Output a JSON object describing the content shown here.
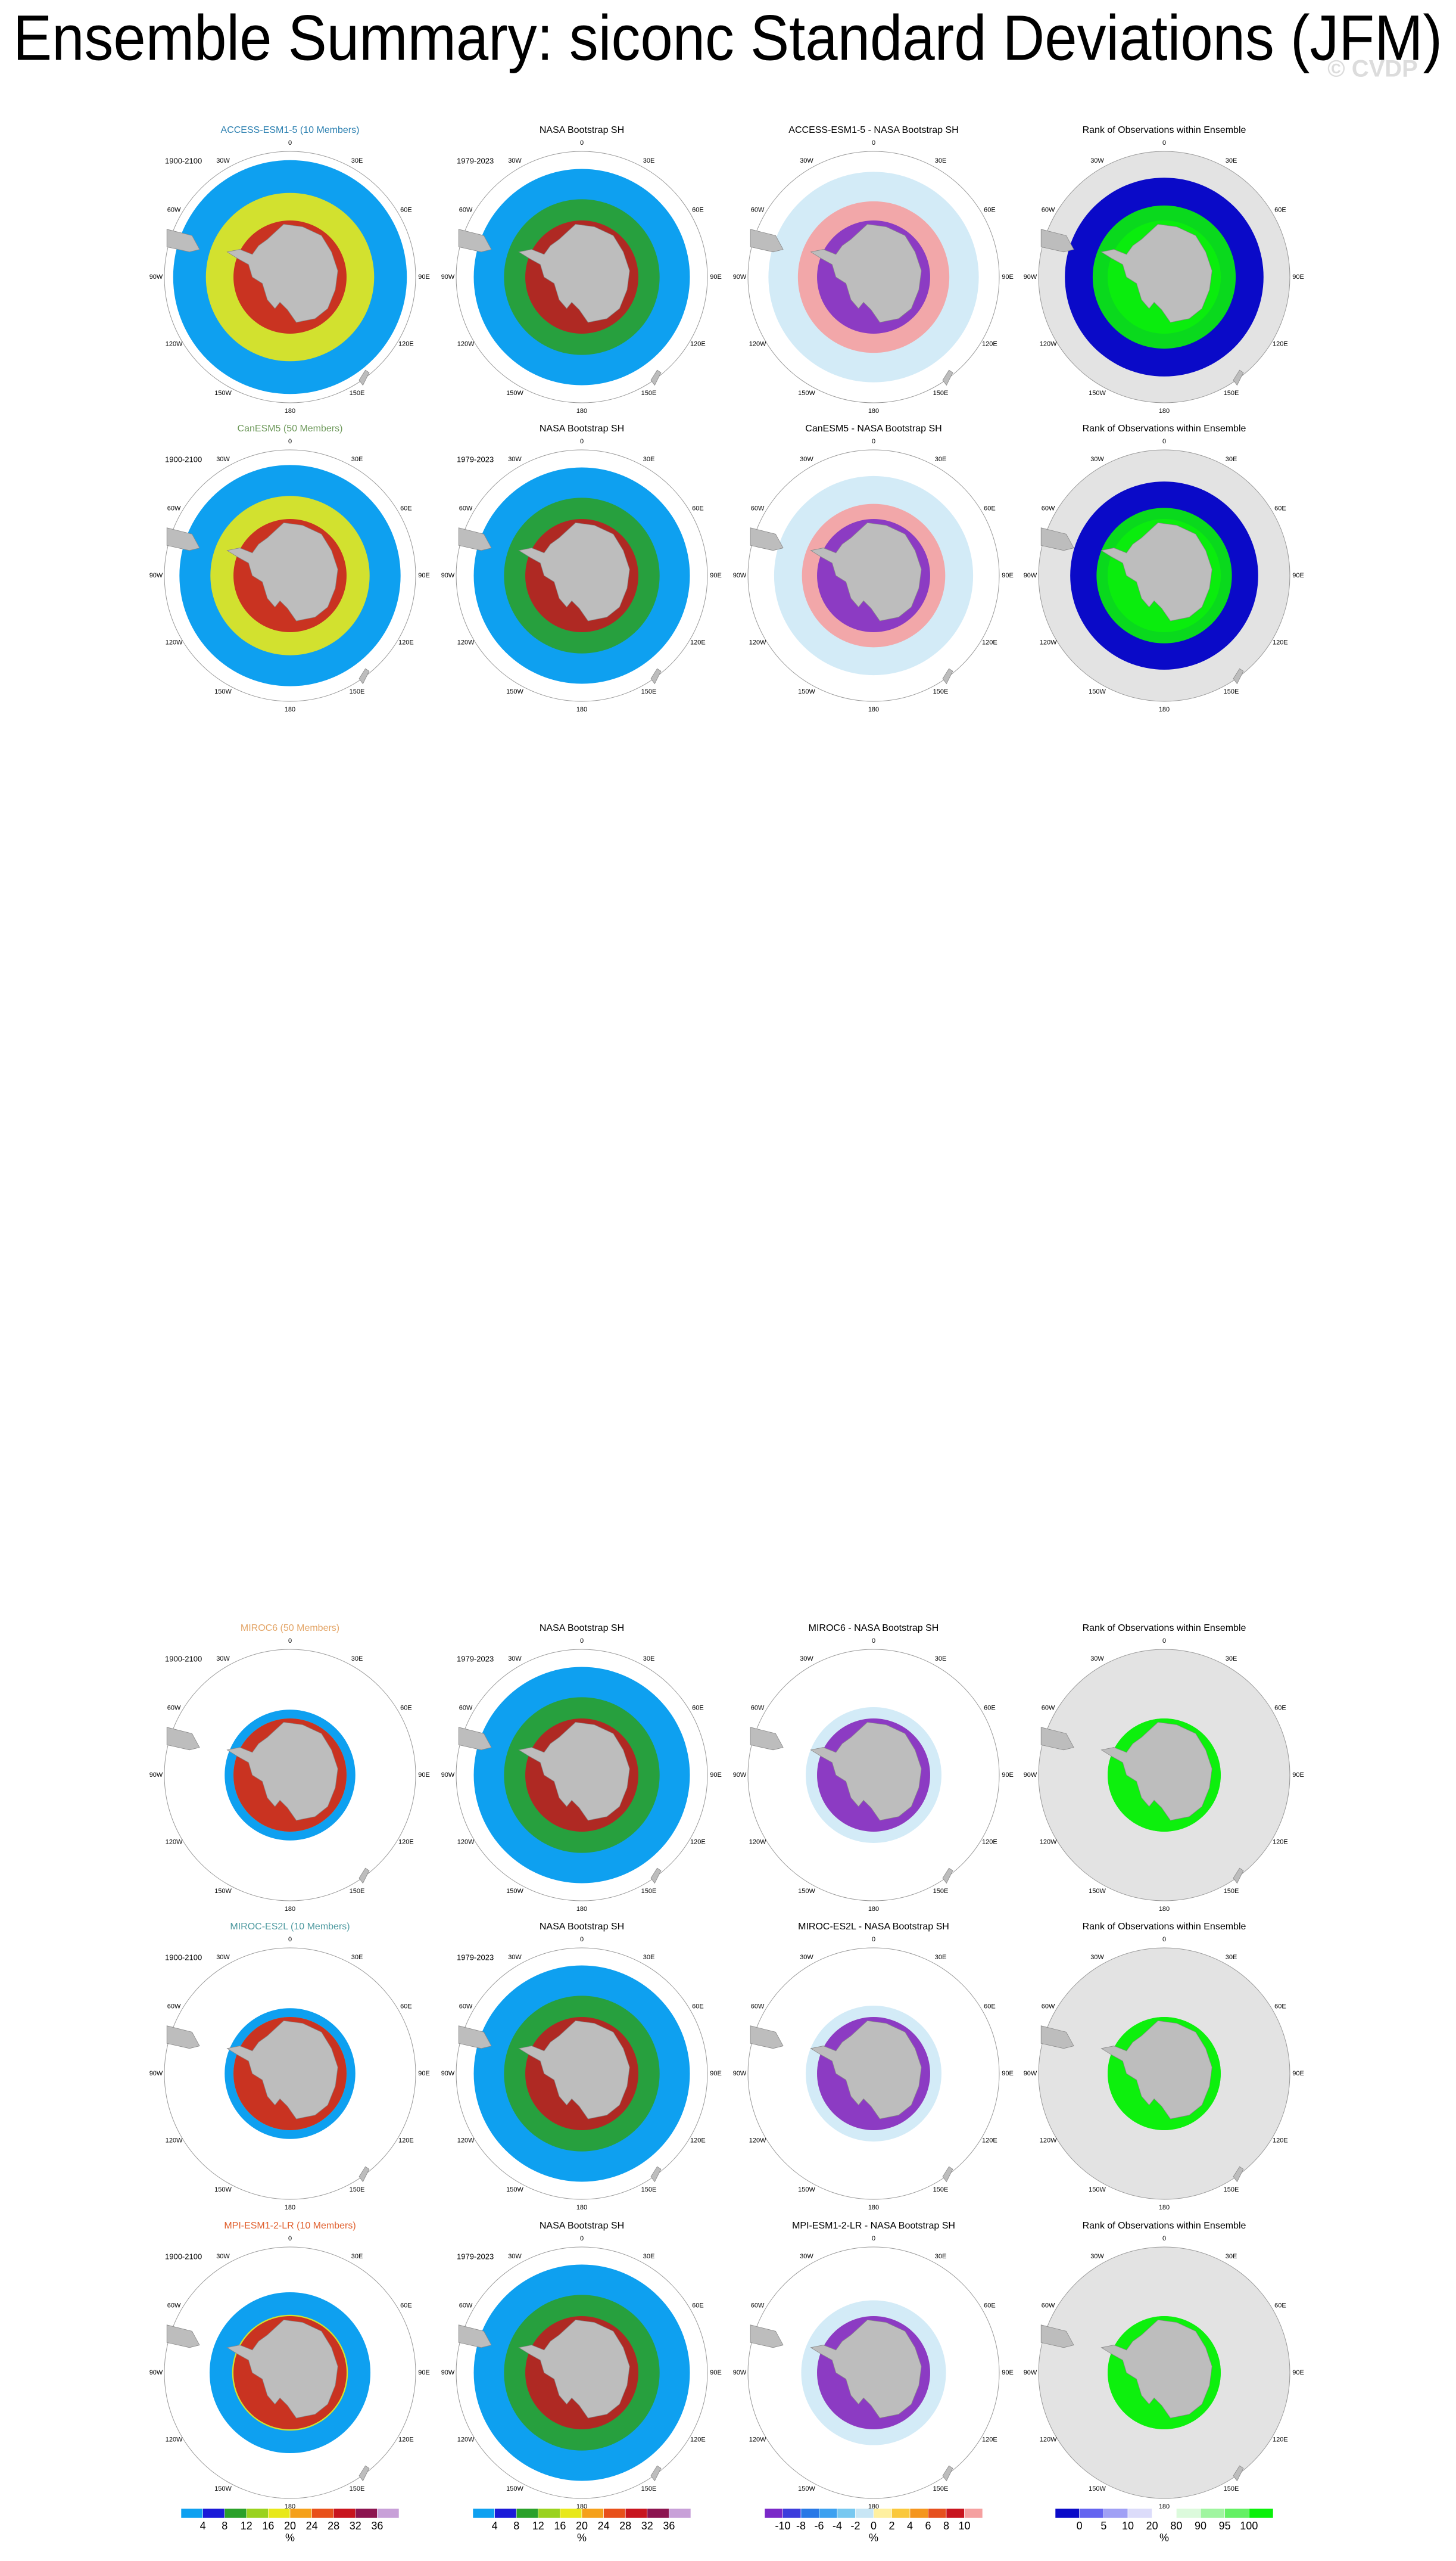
{
  "title": "Ensemble Summary: siconc Standard Deviations (JFM)",
  "watermark": "© CVDP",
  "longitude_labels": [
    "0",
    "30E",
    "60E",
    "90E",
    "120E",
    "150E",
    "180",
    "150W",
    "120W",
    "90W",
    "60W",
    "30W"
  ],
  "rows": [
    {
      "model": "ACCESS-ESM1-5 (10 Members)",
      "model_color": "#2a7fb0",
      "model_period": "1900-2100",
      "obs": "NASA Bootstrap SH",
      "obs_period": "1979-2023",
      "difference": "ACCESS-ESM1-5 - NASA Bootstrap SH",
      "rank": "Rank of Observations within Ensemble"
    },
    {
      "model": "CanESM5 (50 Members)",
      "model_color": "#6f9a5c",
      "model_period": "1900-2100",
      "obs": "NASA Bootstrap SH",
      "obs_period": "1979-2023",
      "difference": "CanESM5 - NASA Bootstrap SH",
      "rank": "Rank of Observations within Ensemble"
    },
    {
      "model": "MIROC6 (50 Members)",
      "model_color": "#e3a567",
      "model_period": "1900-2100",
      "obs": "NASA Bootstrap SH",
      "obs_period": "1979-2023",
      "difference": "MIROC6 - NASA Bootstrap SH",
      "rank": "Rank of Observations within Ensemble"
    },
    {
      "model": "MIROC-ES2L (10 Members)",
      "model_color": "#4f9aa0",
      "model_period": "1900-2100",
      "obs": "NASA Bootstrap SH",
      "obs_period": "1979-2023",
      "difference": "MIROC-ES2L - NASA Bootstrap SH",
      "rank": "Rank of Observations within Ensemble"
    },
    {
      "model": "MPI-ESM1-2-LR (10 Members)",
      "model_color": "#e0602e",
      "model_period": "1900-2100",
      "obs": "NASA Bootstrap SH",
      "obs_period": "1979-2023",
      "difference": "MPI-ESM1-2-LR - NASA Bootstrap SH",
      "rank": "Rank of Observations within Ensemble"
    }
  ],
  "colorbars": [
    {
      "ticks": [
        "4",
        "8",
        "12",
        "16",
        "20",
        "24",
        "28",
        "32",
        "36"
      ],
      "unit": "%",
      "colors": [
        "#0ea0f0",
        "#1a1ad8",
        "#2aa02a",
        "#9ad21e",
        "#e8e81a",
        "#f5a01a",
        "#e8501a",
        "#c8141e",
        "#8c1450",
        "#c8a0d8"
      ]
    },
    {
      "ticks": [
        "-10",
        "-8",
        "-6",
        "-4",
        "-2",
        "0",
        "2",
        "4",
        "6",
        "8",
        "10"
      ],
      "unit": "%",
      "colors": [
        "#7a28c8",
        "#3c3cdc",
        "#2878e6",
        "#3ca0f0",
        "#78c8f0",
        "#c8e6f5",
        "#fff0a0",
        "#fac83c",
        "#f5961e",
        "#e6501e",
        "#c8141e",
        "#f5a0a0"
      ]
    },
    {
      "ticks": [
        "0",
        "5",
        "10",
        "20",
        "80",
        "90",
        "95",
        "100"
      ],
      "unit": "%",
      "colors": [
        "#0a0ac8",
        "#6464f0",
        "#a0a0f5",
        "#dcdcfa",
        "#ffffff",
        "#dcfadc",
        "#a0f5a0",
        "#64f064",
        "#0af00a"
      ]
    }
  ]
}
